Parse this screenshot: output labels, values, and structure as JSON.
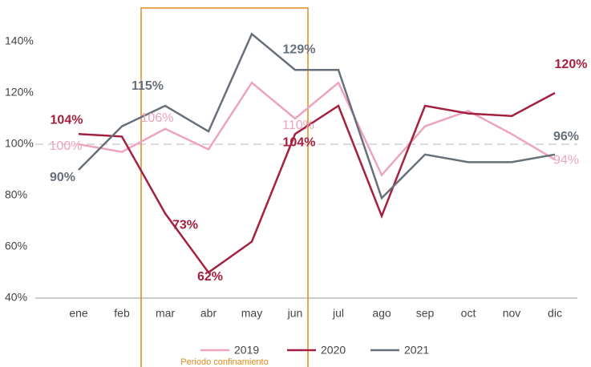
{
  "chart_data": {
    "type": "line",
    "categories": [
      "ene",
      "feb",
      "mar",
      "abr",
      "may",
      "jun",
      "jul",
      "ago",
      "sep",
      "oct",
      "nov",
      "dic"
    ],
    "series": [
      {
        "name": "2019",
        "color": "#eda3bd",
        "values": [
          100,
          97,
          106,
          98,
          124,
          110,
          124,
          88,
          107,
          113,
          104,
          94
        ],
        "value_labels": [
          "100%",
          null,
          "106%",
          null,
          null,
          "110%",
          null,
          null,
          null,
          null,
          null,
          "94%"
        ]
      },
      {
        "name": "2020",
        "color": "#a3203f",
        "values": [
          104,
          103,
          73,
          50,
          62,
          104,
          115,
          72,
          115,
          112,
          111,
          120
        ],
        "value_labels": [
          "104%",
          null,
          "73%",
          null,
          "62%",
          "104%",
          null,
          null,
          null,
          null,
          null,
          "120%"
        ]
      },
      {
        "name": "2021",
        "color": "#67707a",
        "values": [
          90,
          107,
          115,
          105,
          143,
          129,
          129,
          79,
          96,
          93,
          93,
          96
        ],
        "value_labels": [
          "90%",
          null,
          "115%",
          null,
          null,
          "129%",
          null,
          null,
          null,
          null,
          null,
          "96%"
        ]
      }
    ],
    "ylim": [
      40,
      150
    ],
    "yticks": [
      {
        "value": 40,
        "label": "40%"
      },
      {
        "value": 60,
        "label": "60%"
      },
      {
        "value": 80,
        "label": "80%"
      },
      {
        "value": 100,
        "label": "100%"
      },
      {
        "value": 120,
        "label": "120%"
      },
      {
        "value": 140,
        "label": "140%"
      }
    ],
    "reference_line": 100,
    "highlight": {
      "label": "Periodo confinamiento",
      "from": "mar",
      "to": "jun",
      "color": "#e08a1e"
    },
    "legend": "bottom"
  }
}
